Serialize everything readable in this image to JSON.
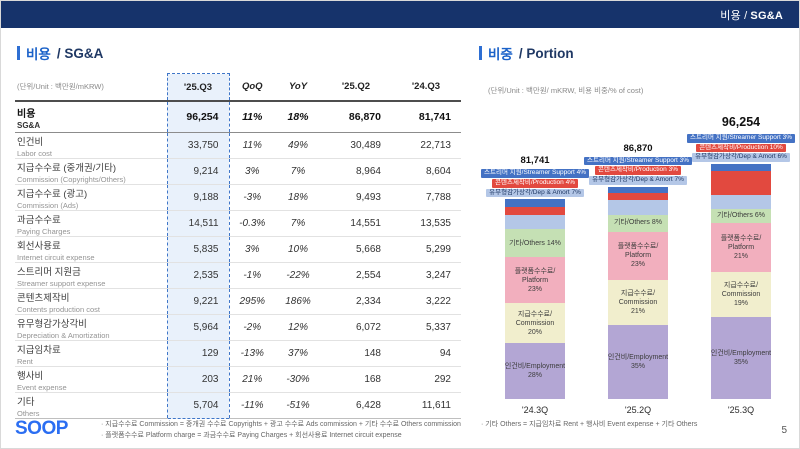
{
  "header": {
    "title_prefix": "비용 /",
    "title_bold": "SG&A"
  },
  "left_panel": {
    "title_kr": "비용",
    "title_rest": "/ SG&A",
    "unit_note": "(단위/Unit : 백만원/mKRW)",
    "table": {
      "columns": [
        {
          "label": "'25.Q3",
          "highlight": true,
          "italic": false,
          "align": "right"
        },
        {
          "label": "QoQ",
          "highlight": false,
          "italic": true,
          "align": "center"
        },
        {
          "label": "YoY",
          "highlight": false,
          "italic": true,
          "align": "center"
        },
        {
          "label": "'25.Q2",
          "highlight": false,
          "italic": false,
          "align": "right"
        },
        {
          "label": "'24.Q3",
          "highlight": false,
          "italic": false,
          "align": "right"
        }
      ],
      "total_row": {
        "kr": "비용",
        "en": "SG&A",
        "values": [
          "96,254",
          "11%",
          "18%",
          "86,870",
          "81,741"
        ]
      },
      "rows": [
        {
          "kr": "인건비",
          "en": "Labor cost",
          "values": [
            "33,750",
            "11%",
            "49%",
            "30,489",
            "22,713"
          ]
        },
        {
          "kr": "지급수수료 (중개권/기타)",
          "en": "Commission (Copyrights/Others)",
          "values": [
            "9,214",
            "3%",
            "7%",
            "8,964",
            "8,604"
          ]
        },
        {
          "kr": "지급수수료 (광고)",
          "en": "Commission (Ads)",
          "values": [
            "9,188",
            "-3%",
            "18%",
            "9,493",
            "7,788"
          ]
        },
        {
          "kr": "과금수수료",
          "en": "Paying Charges",
          "values": [
            "14,511",
            "-0.3%",
            "7%",
            "14,551",
            "13,535"
          ]
        },
        {
          "kr": "회선사용료",
          "en": "Internet circuit expense",
          "values": [
            "5,835",
            "3%",
            "10%",
            "5,668",
            "5,299"
          ]
        },
        {
          "kr": "스트리머 지원금",
          "en": "Streamer support expense",
          "values": [
            "2,535",
            "-1%",
            "-22%",
            "2,554",
            "3,247"
          ]
        },
        {
          "kr": "콘텐츠제작비",
          "en": "Contents production cost",
          "values": [
            "9,221",
            "295%",
            "186%",
            "2,334",
            "3,222"
          ]
        },
        {
          "kr": "유무형감가상각비",
          "en": "Depreciation & Amortization",
          "values": [
            "5,964",
            "-2%",
            "12%",
            "6,072",
            "5,337"
          ]
        },
        {
          "kr": "지급임차료",
          "en": "Rent",
          "values": [
            "129",
            "-13%",
            "37%",
            "148",
            "94"
          ]
        },
        {
          "kr": "행사비",
          "en": "Event expense",
          "values": [
            "203",
            "21%",
            "-30%",
            "168",
            "292"
          ]
        },
        {
          "kr": "기타",
          "en": "Others",
          "values": [
            "5,704",
            "-11%",
            "-51%",
            "6,428",
            "11,611"
          ]
        }
      ]
    },
    "footnotes": [
      "지급수수료 Commission = 중개권 수수료 Copyrights + 광고 수수료 Ads commission + 기타 수수료 Others commission",
      "플랫폼수수료 Platform charge = 과금수수료 Paying Charges + 회선사용료 Internet circuit expense"
    ]
  },
  "right_panel": {
    "title_kr": "비중",
    "title_rest": "/ Portion",
    "footnote": "기타 Others = 지급임차료 Rent + 행사비 Event expense + 기타 Others"
  },
  "chart_data": {
    "type": "bar",
    "subtype": "stacked-percent",
    "title": "비중 / Portion",
    "unit_note": "(단위/Unit : 백만원/ mKRW, 비용 비중/% of cost)",
    "categories": [
      "'24.3Q",
      "'25.2Q",
      "'25.3Q"
    ],
    "totals": [
      81741,
      86870,
      96254
    ],
    "total_labels": [
      "81,741",
      "86,870",
      "96,254"
    ],
    "ylabel": "% of cost",
    "legend": "labels on segments",
    "series": [
      {
        "id": "employment",
        "kr": "인건비",
        "en": "Employment",
        "color": "#b3a6d4",
        "chip": false,
        "inline_pct": false,
        "label_lines": [
          "인건비/Employment"
        ],
        "values": [
          28,
          35,
          35
        ]
      },
      {
        "id": "commission",
        "kr": "지급수수료",
        "en": "Commission",
        "color": "#f1eecd",
        "chip": false,
        "inline_pct": false,
        "label_lines": [
          "지급수수료/",
          "Commission"
        ],
        "values": [
          20,
          21,
          19
        ]
      },
      {
        "id": "platform",
        "kr": "플랫폼수수료",
        "en": "Platform",
        "color": "#f2afbe",
        "chip": false,
        "inline_pct": false,
        "label_lines": [
          "플랫폼수수료/",
          "Platform"
        ],
        "values": [
          23,
          23,
          21
        ]
      },
      {
        "id": "others",
        "kr": "기타",
        "en": "Others",
        "color": "#c5e0b4",
        "chip": false,
        "inline_pct": true,
        "label_lines": [
          "기타/Others"
        ],
        "values": [
          14,
          8,
          6
        ]
      },
      {
        "id": "dep-amort",
        "kr": "유무형감가상각",
        "en": "Dep & Amort",
        "color": "#b4c7e7",
        "chip": true,
        "chip_text_color": "#1f3864",
        "values": [
          7,
          7,
          6
        ]
      },
      {
        "id": "production",
        "kr": "콘텐츠제작비",
        "en": "Production",
        "color": "#e2493f",
        "chip": true,
        "chip_text_color": "#ffffff",
        "values": [
          4,
          3,
          10
        ]
      },
      {
        "id": "streamer-support",
        "kr": "스트리머 지원",
        "en": "Streamer Support",
        "color": "#4472c4",
        "chip": true,
        "chip_text_color": "#ffffff",
        "values": [
          4,
          3,
          3
        ]
      }
    ]
  },
  "footer": {
    "logo_text": "SOOP",
    "page_number": "5"
  }
}
